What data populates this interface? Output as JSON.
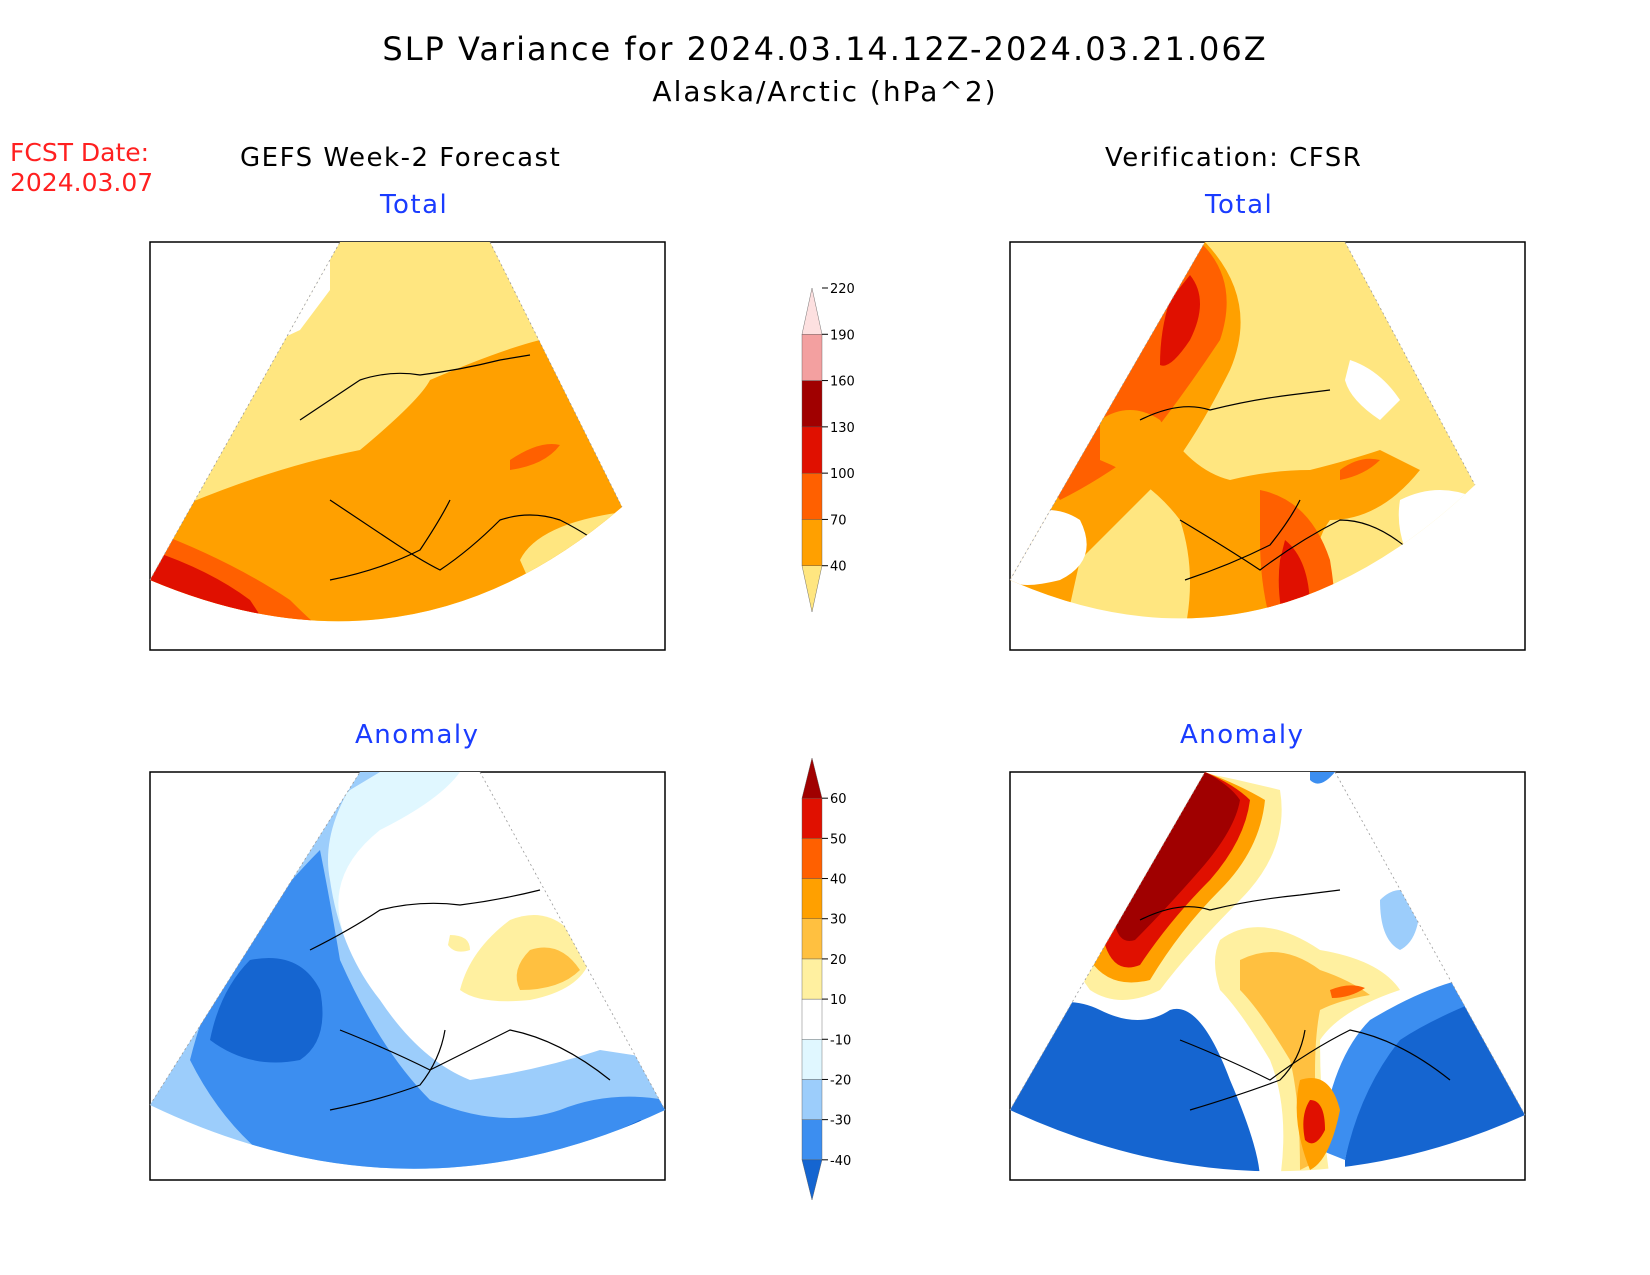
{
  "title": {
    "line1": "SLP Variance for 2024.03.14.12Z-2024.03.21.06Z",
    "line2": "Alaska/Arctic (hPa^2)"
  },
  "forecast": {
    "label": "FCST Date:",
    "date": "2024.03.07"
  },
  "columns": {
    "left": "GEFS Week-2 Forecast",
    "right": "Verification: CFSR"
  },
  "panels": {
    "top_left": {
      "subtitle": "Total"
    },
    "top_right": {
      "subtitle": "Total"
    },
    "bottom_left": {
      "subtitle": "Anomaly"
    },
    "bottom_right": {
      "subtitle": "Anomaly"
    }
  },
  "colorbars": {
    "total": {
      "levels": [
        "40",
        "70",
        "100",
        "130",
        "160",
        "190",
        "220"
      ],
      "colors": [
        "#ffe680",
        "#ffa000",
        "#ff6000",
        "#e01000",
        "#a00000",
        "#f3a0a0",
        "#fde0e0"
      ]
    },
    "anomaly": {
      "levels": [
        "-40",
        "-30",
        "-20",
        "-10",
        "10",
        "20",
        "30",
        "40",
        "50",
        "60"
      ],
      "colors": [
        "#1565d0",
        "#3c8ef0",
        "#9ccdfb",
        "#e0f7ff",
        "#ffffff",
        "#fff0a0",
        "#ffc040",
        "#ffa000",
        "#ff6000",
        "#e01000",
        "#a00000"
      ]
    }
  }
}
